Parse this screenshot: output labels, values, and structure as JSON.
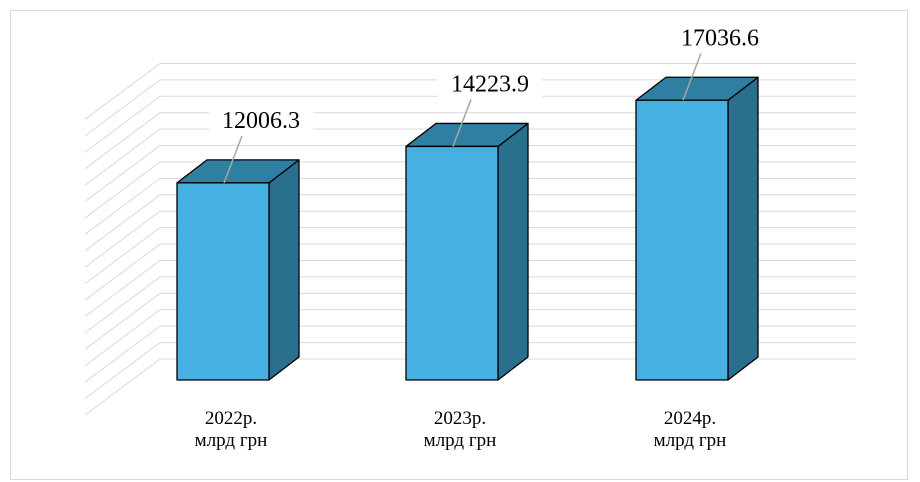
{
  "chart_data": {
    "type": "bar",
    "style": "3d-column",
    "categories": [
      {
        "year": "2022р.",
        "unit": "млрд грн"
      },
      {
        "year": "2023р.",
        "unit": "млрд грн"
      },
      {
        "year": "2024р.",
        "unit": "млрд грн"
      }
    ],
    "values": [
      12006.3,
      14223.9,
      17036.6
    ],
    "value_labels": [
      "12006.3",
      "14223.9",
      "17036.6"
    ],
    "ylim": [
      0,
      18000
    ],
    "grid": true,
    "legend": "none",
    "title": "",
    "xlabel": "",
    "ylabel": ""
  },
  "colors": {
    "bar_front": "#45B0E1",
    "bar_side": "#2A6F8C",
    "bar_top": "#2F7FA3",
    "bar_edge": "#000000",
    "gridline": "#d9d9d9"
  }
}
